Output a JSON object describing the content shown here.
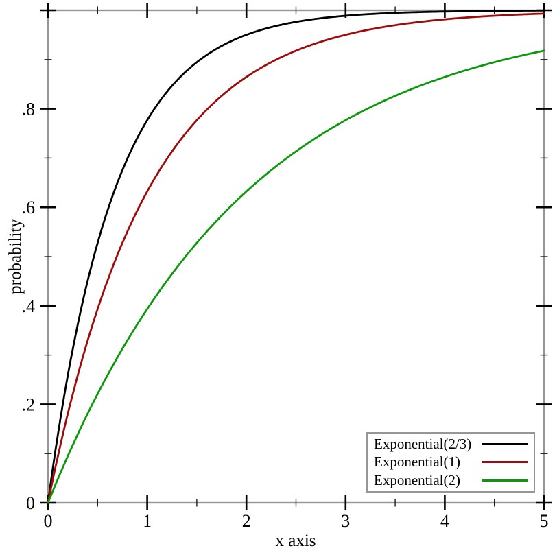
{
  "figure": {
    "background": "#ffffff",
    "frame_color": "#969696",
    "major_tick_color": "#000000",
    "minor_tick_color": "#1a1a1a",
    "text_color": "#000000"
  },
  "chart_data": {
    "type": "line",
    "title": "",
    "xlabel": "x axis",
    "ylabel": "probability",
    "xlim": [
      0,
      5
    ],
    "ylim": [
      0,
      1
    ],
    "grid": false,
    "x_ticks": {
      "major": [
        0,
        1,
        2,
        3,
        4,
        5
      ],
      "labels": [
        "0",
        "1",
        "2",
        "3",
        "4",
        "5"
      ],
      "minor": [
        0.5,
        1.5,
        2.5,
        3.5,
        4.5
      ]
    },
    "y_ticks": {
      "major": [
        0,
        0.2,
        0.4,
        0.6,
        0.8,
        1
      ],
      "labels": [
        "0",
        ".2",
        ".4",
        ".6",
        ".8",
        ""
      ],
      "minor": [
        0.1,
        0.3,
        0.5,
        0.7,
        0.9
      ]
    },
    "legend": {
      "position": "bottom-right"
    },
    "series": [
      {
        "name": "Exponential(2/3)",
        "color": "#000000",
        "function": "CDF: y = 1 - exp(-x/scale)",
        "scale": 0.6667,
        "x": [
          0,
          0.25,
          0.5,
          0.75,
          1,
          1.25,
          1.5,
          1.75,
          2,
          2.25,
          2.5,
          2.75,
          3,
          3.25,
          3.5,
          3.75,
          4,
          4.25,
          4.5,
          4.75,
          5
        ],
        "y": [
          0,
          0.3127,
          0.5276,
          0.6753,
          0.7769,
          0.8466,
          0.8946,
          0.9276,
          0.9502,
          0.9658,
          0.9765,
          0.9838,
          0.9889,
          0.9924,
          0.9948,
          0.9964,
          0.9975,
          0.9983,
          0.9988,
          0.9992,
          0.9994
        ]
      },
      {
        "name": "Exponential(1)",
        "color": "#9e0b0b",
        "function": "CDF: y = 1 - exp(-x/scale)",
        "scale": 1,
        "x": [
          0,
          0.25,
          0.5,
          0.75,
          1,
          1.25,
          1.5,
          1.75,
          2,
          2.25,
          2.5,
          2.75,
          3,
          3.25,
          3.5,
          3.75,
          4,
          4.25,
          4.5,
          4.75,
          5
        ],
        "y": [
          0,
          0.2212,
          0.3935,
          0.5276,
          0.6321,
          0.7135,
          0.7769,
          0.8262,
          0.8647,
          0.8946,
          0.9179,
          0.9361,
          0.9502,
          0.9612,
          0.9698,
          0.9765,
          0.9817,
          0.9857,
          0.9889,
          0.9913,
          0.9933
        ]
      },
      {
        "name": "Exponential(2)",
        "color": "#0b990b",
        "function": "CDF: y = 1 - exp(-x/scale)",
        "scale": 2,
        "x": [
          0,
          0.25,
          0.5,
          0.75,
          1,
          1.25,
          1.5,
          1.75,
          2,
          2.25,
          2.5,
          2.75,
          3,
          3.25,
          3.5,
          3.75,
          4,
          4.25,
          4.5,
          4.75,
          5
        ],
        "y": [
          0,
          0.1175,
          0.2212,
          0.3127,
          0.3935,
          0.4647,
          0.5276,
          0.5831,
          0.6321,
          0.6753,
          0.7135,
          0.7473,
          0.7769,
          0.803,
          0.8262,
          0.8466,
          0.8647,
          0.8808,
          0.8946,
          0.9069,
          0.9179
        ]
      }
    ]
  }
}
